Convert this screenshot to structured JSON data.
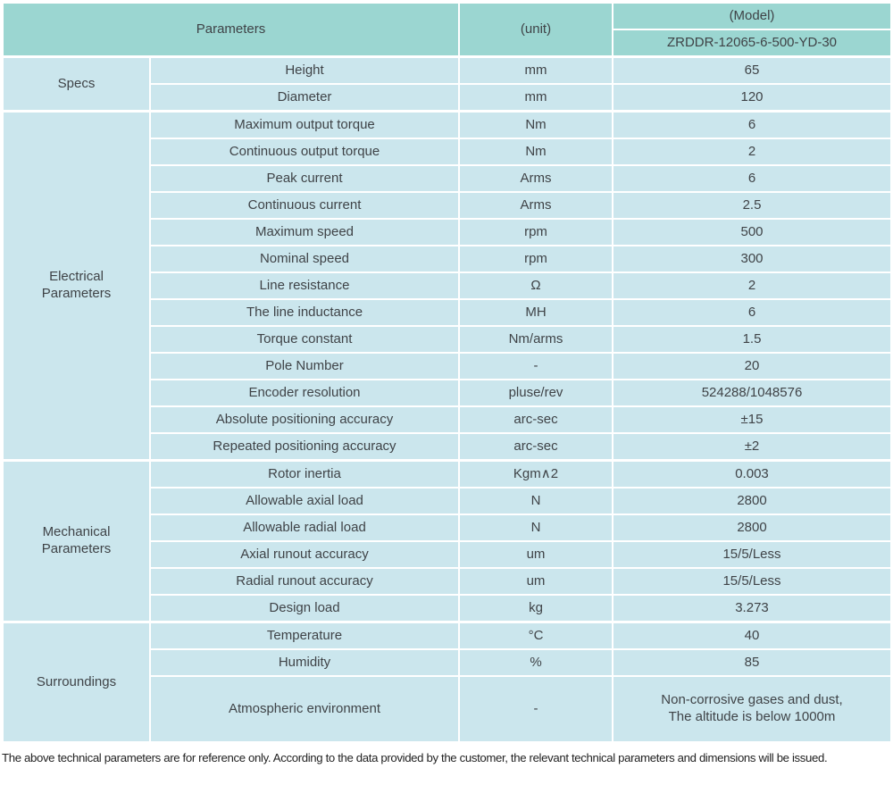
{
  "header": {
    "parameters_label": "Parameters",
    "unit_label": "(unit)",
    "model_label": "(Model)",
    "model_number": "ZRDDR-12065-6-500-YD-30"
  },
  "sections": [
    {
      "label": "Specs",
      "rows": [
        {
          "name": "Height",
          "unit": "mm",
          "value": "65"
        },
        {
          "name": "Diameter",
          "unit": "mm",
          "value": "120"
        }
      ]
    },
    {
      "label": "Electrical\nParameters",
      "rows": [
        {
          "name": "Maximum output torque",
          "unit": "Nm",
          "value": "6"
        },
        {
          "name": "Continuous output torque",
          "unit": "Nm",
          "value": "2"
        },
        {
          "name": "Peak current",
          "unit": "Arms",
          "value": "6"
        },
        {
          "name": "Continuous current",
          "unit": "Arms",
          "value": "2.5"
        },
        {
          "name": "Maximum speed",
          "unit": "rpm",
          "value": "500"
        },
        {
          "name": "Nominal speed",
          "unit": "rpm",
          "value": "300"
        },
        {
          "name": "Line resistance",
          "unit": "Ω",
          "value": "2"
        },
        {
          "name": "The line inductance",
          "unit": "MH",
          "value": "6"
        },
        {
          "name": "Torque constant",
          "unit": "Nm/arms",
          "value": "1.5"
        },
        {
          "name": "Pole Number",
          "unit": "-",
          "value": "20"
        },
        {
          "name": "Encoder resolution",
          "unit": "pluse/rev",
          "value": "524288/1048576"
        },
        {
          "name": "Absolute positioning accuracy",
          "unit": "arc-sec",
          "value": "±15"
        },
        {
          "name": "Repeated positioning accuracy",
          "unit": "arc-sec",
          "value": "±2"
        }
      ]
    },
    {
      "label": "Mechanical\nParameters",
      "rows": [
        {
          "name": "Rotor inertia",
          "unit": "Kgm∧2",
          "value": "0.003"
        },
        {
          "name": "Allowable axial load",
          "unit": "N",
          "value": "2800"
        },
        {
          "name": "Allowable radial load",
          "unit": "N",
          "value": "2800"
        },
        {
          "name": "Axial runout accuracy",
          "unit": "um",
          "value": "15/5/Less"
        },
        {
          "name": "Radial runout accuracy",
          "unit": "um",
          "value": "15/5/Less"
        },
        {
          "name": "Design load",
          "unit": "kg",
          "value": "3.273"
        }
      ]
    },
    {
      "label": "Surroundings",
      "rows": [
        {
          "name": "Temperature",
          "unit": "°C",
          "value": "40"
        },
        {
          "name": "Humidity",
          "unit": "%",
          "value": "85"
        },
        {
          "name": "Atmospheric environment",
          "unit": "-",
          "value": "Non-corrosive gases and dust,\nThe altitude is below 1000m",
          "tall": true
        }
      ]
    }
  ],
  "footer": {
    "note": "The above technical parameters are for reference only. According to the data provided by the customer, the relevant technical parameters and dimensions will be issued."
  },
  "colors": {
    "header_bg": "#9bd6d1",
    "row_bg": "#cbe6ed",
    "divider": "#ffffff",
    "text": "#3f4347"
  }
}
